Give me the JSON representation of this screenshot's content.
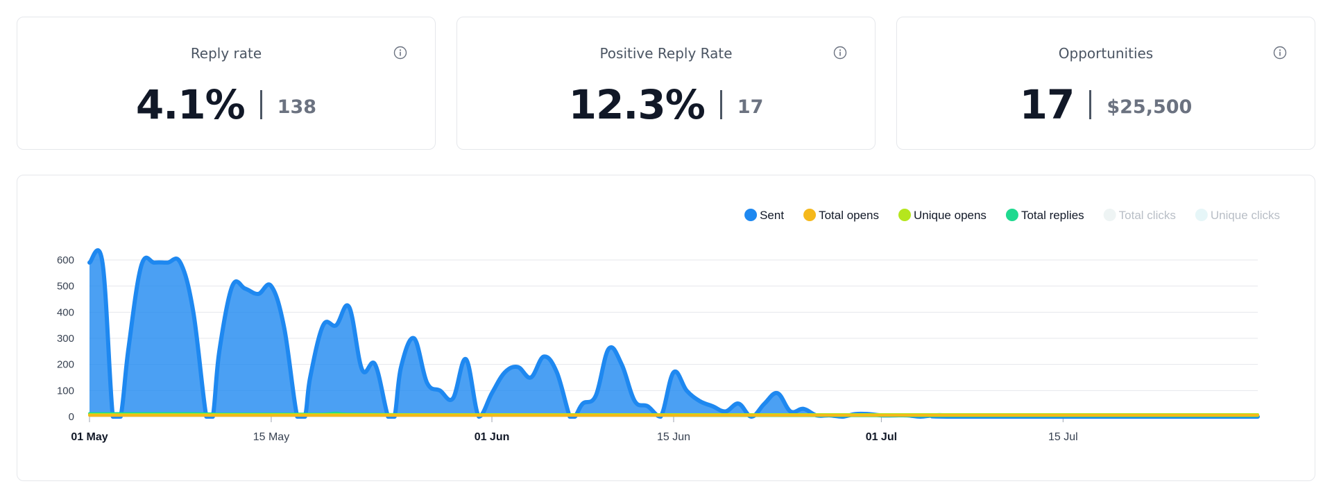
{
  "cards": [
    {
      "title": "Reply rate",
      "value": "4.1%",
      "sub": "138"
    },
    {
      "title": "Positive Reply Rate",
      "value": "12.3%",
      "sub": "17"
    },
    {
      "title": "Opportunities",
      "value": "17",
      "sub": "$25,500"
    }
  ],
  "chart_data": {
    "type": "area",
    "legend_position": "top-right",
    "legend": [
      {
        "name": "Sent",
        "color": "#1e88f0",
        "active": true
      },
      {
        "name": "Total opens",
        "color": "#f5b81b",
        "active": true
      },
      {
        "name": "Unique opens",
        "color": "#b5e61d",
        "active": true
      },
      {
        "name": "Total replies",
        "color": "#1fd98f",
        "active": true
      },
      {
        "name": "Total clicks",
        "color": "#eef4f4",
        "active": false
      },
      {
        "name": "Unique clicks",
        "color": "#e6f6f8",
        "active": false
      }
    ],
    "x_ticks": [
      {
        "day": 0,
        "label": "01 May",
        "bold": true
      },
      {
        "day": 14,
        "label": "15 May",
        "bold": false
      },
      {
        "day": 31,
        "label": "01 Jun",
        "bold": true
      },
      {
        "day": 45,
        "label": "15 Jun",
        "bold": false
      },
      {
        "day": 61,
        "label": "01 Jul",
        "bold": true
      },
      {
        "day": 75,
        "label": "15 Jul",
        "bold": false
      }
    ],
    "y_ticks": [
      0,
      100,
      200,
      300,
      400,
      500,
      600
    ],
    "ylim": [
      0,
      600
    ],
    "xlim_days": [
      0,
      90
    ],
    "grid": true,
    "series": [
      {
        "name": "Sent",
        "color": "#1e88f0",
        "points": [
          [
            0,
            590
          ],
          [
            1,
            590
          ],
          [
            1.8,
            0
          ],
          [
            2.4,
            0
          ],
          [
            3,
            260
          ],
          [
            4,
            580
          ],
          [
            5,
            590
          ],
          [
            6,
            590
          ],
          [
            7,
            590
          ],
          [
            8,
            400
          ],
          [
            9,
            0
          ],
          [
            9.5,
            0
          ],
          [
            10,
            250
          ],
          [
            11,
            500
          ],
          [
            12,
            490
          ],
          [
            13,
            470
          ],
          [
            14,
            500
          ],
          [
            15,
            340
          ],
          [
            16,
            0
          ],
          [
            16.6,
            0
          ],
          [
            17,
            150
          ],
          [
            18,
            350
          ],
          [
            19,
            350
          ],
          [
            20,
            420
          ],
          [
            21,
            180
          ],
          [
            22,
            200
          ],
          [
            23,
            0
          ],
          [
            23.5,
            0
          ],
          [
            24,
            190
          ],
          [
            25,
            300
          ],
          [
            26,
            130
          ],
          [
            27,
            100
          ],
          [
            28,
            70
          ],
          [
            29,
            220
          ],
          [
            30,
            0
          ],
          [
            31,
            90
          ],
          [
            32,
            170
          ],
          [
            33,
            190
          ],
          [
            34,
            150
          ],
          [
            35,
            230
          ],
          [
            36,
            170
          ],
          [
            37,
            0
          ],
          [
            37.4,
            0
          ],
          [
            38,
            50
          ],
          [
            39,
            80
          ],
          [
            40,
            260
          ],
          [
            41,
            200
          ],
          [
            42,
            60
          ],
          [
            43,
            40
          ],
          [
            44,
            0
          ],
          [
            45,
            170
          ],
          [
            46,
            100
          ],
          [
            47,
            60
          ],
          [
            48,
            40
          ],
          [
            49,
            20
          ],
          [
            50,
            50
          ],
          [
            51,
            0
          ],
          [
            52,
            50
          ],
          [
            53,
            90
          ],
          [
            54,
            20
          ],
          [
            55,
            30
          ],
          [
            56,
            5
          ],
          [
            57,
            5
          ],
          [
            58,
            0
          ],
          [
            59,
            10
          ],
          [
            60,
            10
          ],
          [
            61,
            5
          ],
          [
            62,
            5
          ],
          [
            63,
            5
          ],
          [
            64,
            0
          ],
          [
            65,
            5
          ],
          [
            66,
            5
          ],
          [
            67,
            0
          ],
          [
            90,
            0
          ]
        ]
      },
      {
        "name": "Total replies",
        "color": "#1fd98f",
        "points": [
          [
            0,
            12
          ],
          [
            1,
            12
          ],
          [
            2,
            12
          ],
          [
            5,
            12
          ],
          [
            8,
            12
          ],
          [
            10,
            10
          ],
          [
            15,
            10
          ],
          [
            18,
            10
          ],
          [
            19,
            14
          ],
          [
            20,
            10
          ],
          [
            25,
            8
          ],
          [
            30,
            6
          ],
          [
            35,
            6
          ],
          [
            40,
            6
          ],
          [
            45,
            5
          ],
          [
            55,
            4
          ],
          [
            65,
            3
          ],
          [
            90,
            3
          ]
        ]
      },
      {
        "name": "Unique opens",
        "color": "#b5e61d",
        "points": [
          [
            0,
            8
          ],
          [
            90,
            8
          ]
        ]
      },
      {
        "name": "Total opens",
        "color": "#f5b81b",
        "points": [
          [
            0,
            5
          ],
          [
            90,
            5
          ]
        ]
      }
    ]
  }
}
